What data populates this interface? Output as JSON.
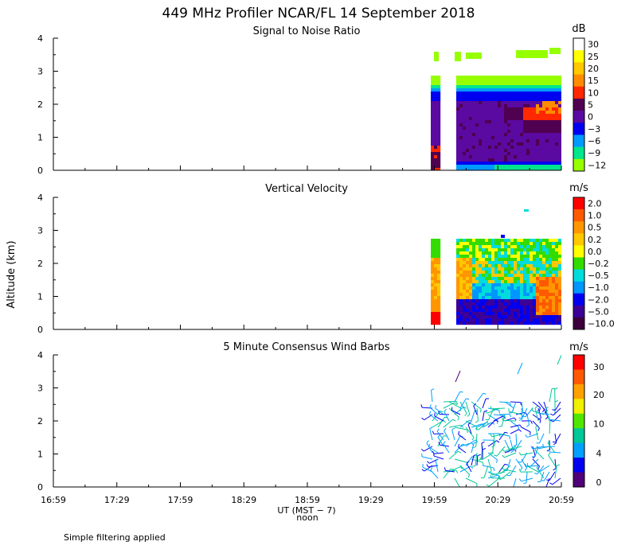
{
  "header": {
    "title": "449 MHz Profiler NCAR/FL 14 September 2018"
  },
  "footer": {
    "note": "Simple filtering applied"
  },
  "axes": {
    "ylabel": "Altitude (km)",
    "xlabel_main": "UT  (MST − 7)",
    "xlabel_sub": "noon"
  },
  "chart_data": [
    {
      "type": "heatmap",
      "title": "Signal to Noise Ratio",
      "xlabel": "UT  (MST − 7)",
      "ylabel": "Altitude (km)",
      "xticks": [
        "16:59",
        "17:29",
        "17:59",
        "18:29",
        "18:59",
        "19:29",
        "19:59",
        "20:29",
        "20:59"
      ],
      "yticks": [
        "0",
        "1",
        "2",
        "3",
        "4"
      ],
      "ylim": [
        0,
        4
      ],
      "colorbar": {
        "unit": "dB",
        "levels": [
          "30",
          "25",
          "20",
          "15",
          "10",
          "5",
          "0",
          "−3",
          "−6",
          "−9",
          "−12"
        ],
        "colors": [
          "#ffffff",
          "#ffff00",
          "#ffc800",
          "#ff8c00",
          "#ff2800",
          "#500050",
          "#5a0aa0",
          "#0000f0",
          "#009bff",
          "#00e68c",
          "#96ff00"
        ]
      },
      "data_coverage": "Returns only from about 19:59 to 20:59 UT; a data gap at about 20:03-20:06 UT. Strongest SNR (10-15 dB) near 1.5-2.2 km after 20:40 UT."
    },
    {
      "type": "heatmap",
      "title": "Vertical Velocity",
      "xlabel": "UT  (MST − 7)",
      "ylabel": "Altitude (km)",
      "xticks": [
        "16:59",
        "17:29",
        "17:59",
        "18:29",
        "18:59",
        "19:29",
        "19:59",
        "20:29",
        "20:59"
      ],
      "yticks": [
        "0",
        "1",
        "2",
        "3",
        "4"
      ],
      "ylim": [
        0,
        4
      ],
      "colorbar": {
        "unit": "m/s",
        "levels": [
          "2.0",
          "1.0",
          "0.5",
          "0.2",
          "0.0",
          "−0.2",
          "−0.5",
          "−1.0",
          "−2.0",
          "−5.0",
          "−10.0"
        ],
        "colors": [
          "#ff0000",
          "#ff5a00",
          "#ff9600",
          "#ffc800",
          "#ffff00",
          "#32dc00",
          "#00dcdc",
          "#0096ff",
          "#0000f0",
          "#3c0096",
          "#3c003c"
        ]
      },
      "data_coverage": "Returns from about 19:59 to 20:59 UT below about 2.7 km; downward motion (blue) at low levels, upward motion (orange/red) near 0.5-1.5 km after 20:50 UT."
    },
    {
      "type": "scatter",
      "title": "5 Minute Consensus Wind Barbs",
      "xlabel": "UT  (MST − 7)",
      "ylabel": "Altitude (km)",
      "xticks": [
        "16:59",
        "17:29",
        "17:59",
        "18:29",
        "18:59",
        "19:29",
        "19:59",
        "20:29",
        "20:59"
      ],
      "yticks": [
        "0",
        "1",
        "2",
        "3",
        "4"
      ],
      "ylim": [
        0,
        4
      ],
      "colorbar": {
        "unit": "m/s",
        "labels": [
          "30",
          "20",
          "10",
          "4",
          "0"
        ],
        "colors": [
          "#ff0000",
          "#ff5a00",
          "#ffa000",
          "#f0f000",
          "#50e600",
          "#00c896",
          "#00a0ff",
          "#0000f0",
          "#500078"
        ]
      },
      "data_coverage": "Wind barbs from about 19:59 to 20:59 UT, mostly 0-2.7 km with a few near 3-4 km; mostly 0-10 m/s (purple, blue, cyan)."
    }
  ]
}
